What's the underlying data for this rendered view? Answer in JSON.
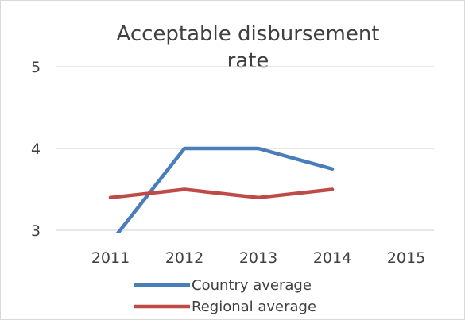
{
  "chart_data": {
    "type": "line",
    "title_lines": [
      "Acceptable disbursement",
      "rate"
    ],
    "categories": [
      "2011",
      "2012",
      "2013",
      "2014",
      "2015"
    ],
    "y_ticks": [
      "3",
      "4",
      "5"
    ],
    "ylim": [
      3,
      5
    ],
    "grid": true,
    "legend_position": "bottom",
    "series": [
      {
        "name": "Country average",
        "color": "#4a7ebb",
        "values": [
          2.85,
          4.0,
          4.0,
          3.75,
          null
        ]
      },
      {
        "name": "Regional average",
        "color": "#be4b48",
        "values": [
          3.4,
          3.5,
          3.4,
          3.5,
          null
        ]
      }
    ]
  }
}
